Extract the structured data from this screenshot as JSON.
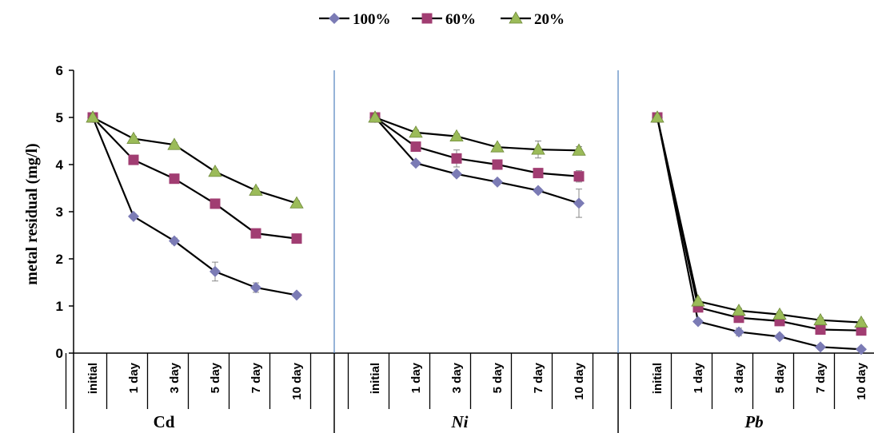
{
  "chart_data": {
    "type": "line",
    "ylabel": "metal residual (mg/l)",
    "ylim": [
      0,
      6
    ],
    "yticks": [
      0,
      1,
      2,
      3,
      4,
      5,
      6
    ],
    "categories": [
      "initial",
      "1 day",
      "3 day",
      "5 day",
      "7 day",
      "10 day"
    ],
    "legend_position": "top-center",
    "groups": [
      {
        "name": "Cd",
        "italic": false,
        "series": [
          {
            "name": "100%",
            "values": [
              5.0,
              2.9,
              2.38,
              1.73,
              1.39,
              1.23
            ],
            "errors": [
              0,
              0.05,
              0.06,
              0.2,
              0.1,
              0.04
            ]
          },
          {
            "name": "60%",
            "values": [
              5.0,
              4.1,
              3.7,
              3.17,
              2.54,
              2.43
            ],
            "errors": [
              0,
              0.05,
              0.05,
              0.05,
              0.05,
              0.05
            ]
          },
          {
            "name": "20%",
            "values": [
              5.0,
              4.55,
              4.42,
              3.85,
              3.45,
              3.18
            ],
            "errors": [
              0,
              0.05,
              0.05,
              0.05,
              0.05,
              0.05
            ]
          }
        ]
      },
      {
        "name": "Ni",
        "italic": true,
        "series": [
          {
            "name": "100%",
            "values": [
              5.0,
              4.03,
              3.8,
              3.63,
              3.45,
              3.18
            ],
            "errors": [
              0,
              0.05,
              0.05,
              0.05,
              0.05,
              0.3
            ]
          },
          {
            "name": "60%",
            "values": [
              5.0,
              4.38,
              4.13,
              4.0,
              3.82,
              3.75
            ],
            "errors": [
              0,
              0.05,
              0.18,
              0.1,
              0.05,
              0.12
            ]
          },
          {
            "name": "20%",
            "values": [
              5.0,
              4.68,
              4.6,
              4.37,
              4.32,
              4.3
            ],
            "errors": [
              0,
              0.05,
              0.05,
              0.05,
              0.18,
              0.08
            ]
          }
        ]
      },
      {
        "name": "Pb",
        "italic": true,
        "series": [
          {
            "name": "100%",
            "values": [
              5.0,
              0.67,
              0.45,
              0.35,
              0.13,
              0.08
            ],
            "errors": [
              0,
              0.05,
              0.08,
              0.05,
              0.05,
              0.03
            ]
          },
          {
            "name": "60%",
            "values": [
              5.0,
              0.97,
              0.75,
              0.68,
              0.5,
              0.48
            ],
            "errors": [
              0,
              0.05,
              0.05,
              0.05,
              0.05,
              0.05
            ]
          },
          {
            "name": "20%",
            "values": [
              5.0,
              1.1,
              0.9,
              0.82,
              0.7,
              0.65
            ],
            "errors": [
              0,
              0.05,
              0.05,
              0.05,
              0.05,
              0.05
            ]
          }
        ]
      }
    ],
    "series_styles": [
      {
        "name": "100%",
        "marker": "diamond",
        "color": "#7b7bb5"
      },
      {
        "name": "60%",
        "marker": "square",
        "color": "#a13d72"
      },
      {
        "name": "20%",
        "marker": "triangle",
        "color": "#9bbb59"
      }
    ],
    "line_color": "#000000",
    "separator_color": "#4f81bd"
  }
}
